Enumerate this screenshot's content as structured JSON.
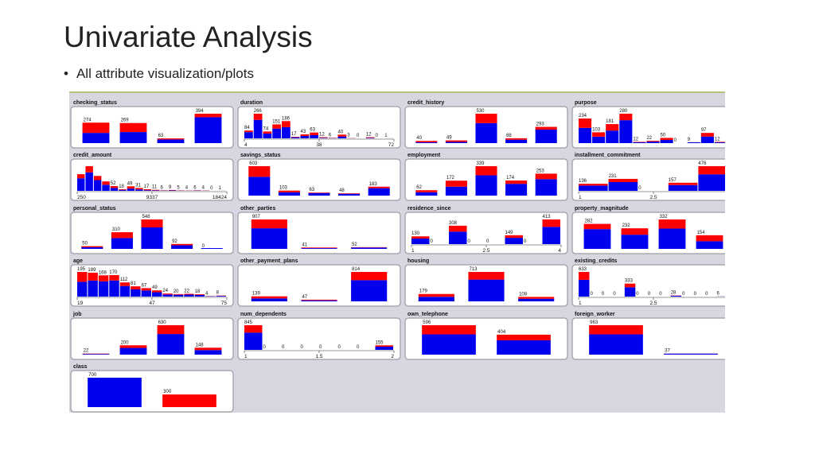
{
  "slide": {
    "title": "Univariate Analysis",
    "bullet": "All attribute visualization/plots"
  },
  "colors": {
    "red": "#ff0000",
    "blue": "#0000ee",
    "panel": "#ffffff",
    "panel_border": "#a8a8b0",
    "background": "#d6d7e0"
  },
  "chart_data": [
    {
      "type": "bar",
      "name": "checking_status",
      "values": [
        274,
        269,
        63,
        394
      ],
      "red_share": [
        0.5,
        0.45,
        0.22,
        0.12
      ],
      "axis": []
    },
    {
      "type": "bar",
      "name": "duration",
      "values": [
        84,
        266,
        74,
        151,
        186,
        17,
        43,
        63,
        12,
        6,
        40,
        3,
        0,
        12,
        0,
        1
      ],
      "red_share": [
        0.2,
        0.25,
        0.3,
        0.3,
        0.35,
        0.3,
        0.4,
        0.45,
        0.5,
        0.5,
        0.5,
        0.5,
        0.5,
        0.5,
        0.5,
        0.5
      ],
      "labels": [
        "84",
        "266",
        "74",
        "151",
        "186",
        "17",
        "43",
        "63",
        "12",
        "6",
        "40",
        "3",
        "0",
        "12",
        "0",
        "1"
      ],
      "axis": [
        "4",
        "38",
        "72"
      ]
    },
    {
      "type": "bar",
      "name": "credit_history",
      "values": [
        40,
        49,
        530,
        88,
        293
      ],
      "red_share": [
        0.6,
        0.55,
        0.32,
        0.3,
        0.17
      ],
      "axis": []
    },
    {
      "type": "bar",
      "name": "purpose",
      "values": [
        234,
        103,
        181,
        280,
        12,
        22,
        50,
        0,
        9,
        97,
        12
      ],
      "red_share": [
        0.38,
        0.4,
        0.34,
        0.22,
        0.33,
        0.36,
        0.4,
        0,
        0.11,
        0.35,
        0.4
      ],
      "labels": [
        "234",
        "103",
        "181",
        "280",
        "12",
        "22",
        "50",
        "0",
        "9",
        "97",
        "12"
      ],
      "axis": []
    },
    {
      "type": "bar",
      "name": "credit_amount",
      "values": [
        181,
        268,
        162,
        102,
        52,
        18,
        49,
        31,
        17,
        11,
        6,
        9,
        5,
        4,
        6,
        4,
        0,
        1
      ],
      "red_share": [
        0.25,
        0.25,
        0.28,
        0.35,
        0.4,
        0.45,
        0.5,
        0.5,
        0.55,
        0.5,
        0.5,
        0.5,
        0.5,
        0.5,
        0.5,
        0.5,
        0.5,
        0.5
      ],
      "labels": [
        "",
        "",
        "",
        "",
        "52",
        "18",
        "49",
        "31",
        "17",
        "11",
        "6",
        "9",
        "5",
        "4",
        "6",
        "4",
        "0",
        "1"
      ],
      "axis": [
        "250",
        "9337",
        "18424"
      ]
    },
    {
      "type": "bar",
      "name": "savings_status",
      "values": [
        603,
        103,
        63,
        48,
        183
      ],
      "red_share": [
        0.36,
        0.33,
        0.17,
        0.23,
        0.17
      ],
      "axis": []
    },
    {
      "type": "bar",
      "name": "employment",
      "values": [
        62,
        172,
        339,
        174,
        253
      ],
      "red_share": [
        0.37,
        0.4,
        0.31,
        0.22,
        0.25
      ],
      "axis": []
    },
    {
      "type": "bar",
      "name": "installment_commitment",
      "values": [
        136,
        231,
        0,
        157,
        476
      ],
      "red_share": [
        0.25,
        0.27,
        0,
        0.29,
        0.33
      ],
      "labels": [
        "136",
        "231",
        "0",
        "157",
        "476"
      ],
      "axis": [
        "1",
        "2.5",
        "4"
      ]
    },
    {
      "type": "bar",
      "name": "personal_status",
      "values": [
        50,
        310,
        548,
        92,
        0
      ],
      "red_share": [
        0.4,
        0.35,
        0.27,
        0.27,
        0
      ],
      "axis": []
    },
    {
      "type": "bar",
      "name": "other_parties",
      "values": [
        907,
        41,
        52
      ],
      "red_share": [
        0.3,
        0.44,
        0.19
      ],
      "axis": []
    },
    {
      "type": "bar",
      "name": "residence_since",
      "values": [
        130,
        0,
        308,
        0,
        0,
        149,
        0,
        413
      ],
      "red_share": [
        0.28,
        0,
        0.32,
        0,
        0,
        0.29,
        0,
        0.3
      ],
      "labels": [
        "130",
        "0",
        "308",
        "0",
        "0",
        "149",
        "0",
        "413"
      ],
      "axis": [
        "1",
        "2.5",
        "4"
      ]
    },
    {
      "type": "bar",
      "name": "property_magnitude",
      "values": [
        282,
        232,
        332,
        154
      ],
      "red_share": [
        0.21,
        0.31,
        0.31,
        0.44
      ],
      "axis": []
    },
    {
      "type": "bar",
      "name": "age",
      "values": [
        195,
        189,
        168,
        170,
        112,
        81,
        67,
        49,
        24,
        20,
        22,
        18,
        4,
        8
      ],
      "red_share": [
        0.4,
        0.33,
        0.28,
        0.25,
        0.25,
        0.3,
        0.28,
        0.3,
        0.3,
        0.3,
        0.3,
        0.3,
        0.3,
        0.3
      ],
      "labels": [
        "195",
        "189",
        "168",
        "170",
        "112",
        "81",
        "67",
        "49",
        "24",
        "20",
        "22",
        "18",
        "4",
        "8"
      ],
      "axis": [
        "19",
        "47",
        "75"
      ]
    },
    {
      "type": "bar",
      "name": "other_payment_plans",
      "values": [
        139,
        47,
        814
      ],
      "red_share": [
        0.41,
        0.4,
        0.28
      ],
      "axis": []
    },
    {
      "type": "bar",
      "name": "housing",
      "values": [
        179,
        713,
        108
      ],
      "red_share": [
        0.39,
        0.26,
        0.41
      ],
      "axis": []
    },
    {
      "type": "bar",
      "name": "existing_credits",
      "values": [
        633,
        0,
        0,
        0,
        333,
        0,
        0,
        0,
        28,
        0,
        0,
        0,
        6
      ],
      "red_share": [
        0.32,
        0,
        0,
        0,
        0.28,
        0,
        0,
        0,
        0.21,
        0,
        0,
        0,
        0.33
      ],
      "labels": [
        "633",
        "0",
        "0",
        "0",
        "333",
        "0",
        "0",
        "0",
        "28",
        "0",
        "0",
        "0",
        "6"
      ],
      "axis": [
        "1",
        "2.5",
        "4"
      ]
    },
    {
      "type": "bar",
      "name": "job",
      "values": [
        22,
        200,
        630,
        148
      ],
      "red_share": [
        0.32,
        0.28,
        0.3,
        0.34
      ],
      "axis": []
    },
    {
      "type": "bar",
      "name": "num_dependents",
      "values": [
        845,
        0,
        0,
        0,
        0,
        0,
        0,
        155
      ],
      "red_share": [
        0.3,
        0,
        0,
        0,
        0,
        0,
        0,
        0.3
      ],
      "labels": [
        "845",
        "0",
        "0",
        "0",
        "0",
        "0",
        "0",
        "155"
      ],
      "axis": [
        "1",
        "1.5",
        "2"
      ]
    },
    {
      "type": "bar",
      "name": "own_telephone",
      "values": [
        596,
        404
      ],
      "red_share": [
        0.31,
        0.28
      ],
      "axis": []
    },
    {
      "type": "bar",
      "name": "foreign_worker",
      "values": [
        963,
        37
      ],
      "red_share": [
        0.31,
        0.11
      ],
      "axis": []
    },
    {
      "type": "bar",
      "name": "class",
      "values": [
        700,
        300
      ],
      "red_share": [
        0,
        1
      ],
      "axis": []
    }
  ]
}
